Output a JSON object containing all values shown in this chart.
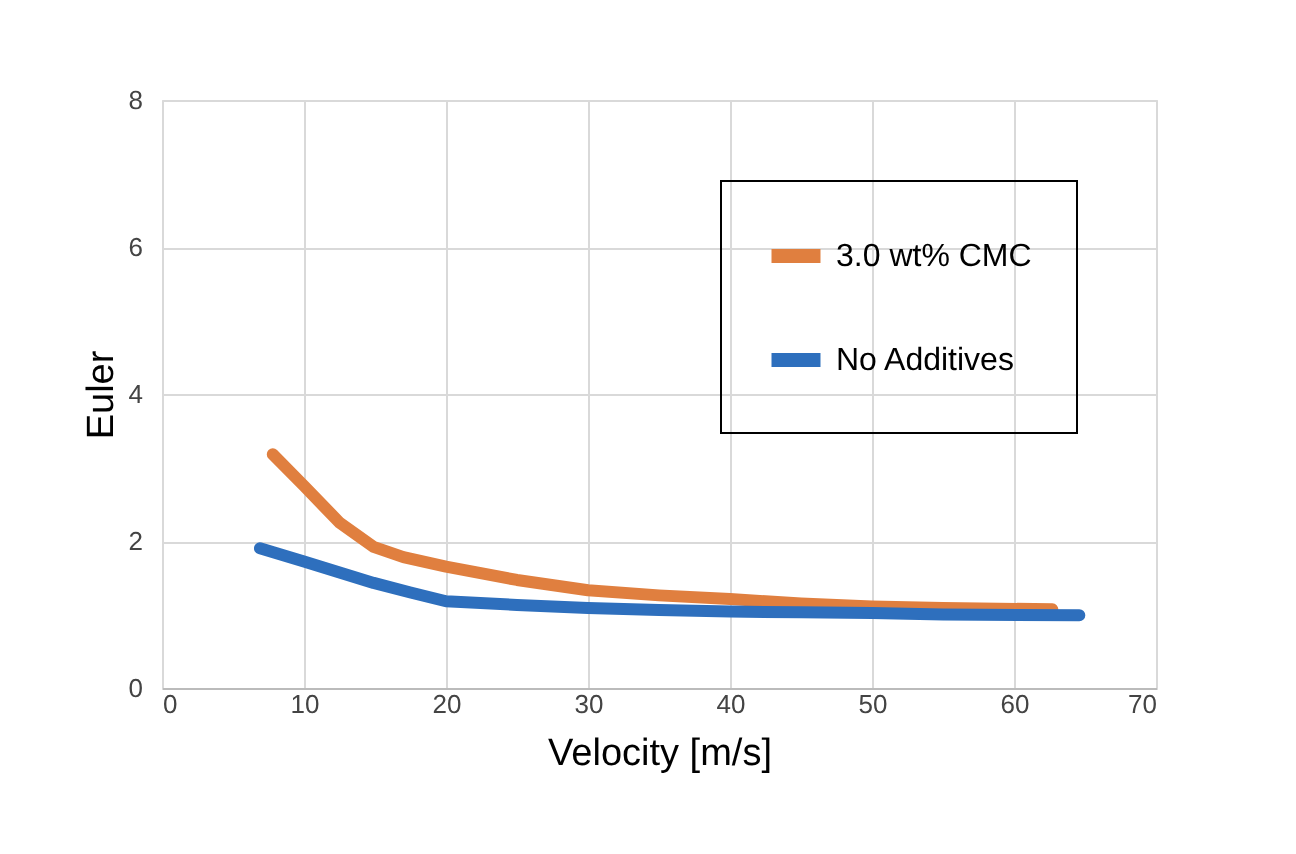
{
  "chart_data": {
    "type": "line",
    "xlabel": "Velocity [m/s]",
    "ylabel": "Euler",
    "xlim": [
      0,
      70
    ],
    "xticks": [
      0,
      10,
      20,
      30,
      40,
      50,
      60,
      70
    ],
    "ylim": [
      0,
      8
    ],
    "yticks": [
      0,
      2,
      4,
      6,
      8
    ],
    "grid": true,
    "legend": "top right",
    "line_style": "solid",
    "marker": "none",
    "series": [
      {
        "name": "3.0 wt% CMC",
        "color": "#e07f3f",
        "x": [
          7.8,
          10,
          12.5,
          14.9,
          17,
          20,
          25,
          30,
          35,
          40,
          45,
          50,
          55,
          62.7
        ],
        "values": [
          3.18,
          2.75,
          2.25,
          1.92,
          1.78,
          1.65,
          1.47,
          1.33,
          1.26,
          1.21,
          1.15,
          1.11,
          1.09,
          1.07
        ]
      },
      {
        "name": "No Additives",
        "color": "#2e6fbd",
        "x": [
          6.9,
          10,
          14.9,
          17.5,
          20,
          25,
          30,
          35,
          40,
          45,
          50,
          55,
          64.6
        ],
        "values": [
          1.9,
          1.72,
          1.43,
          1.3,
          1.18,
          1.13,
          1.09,
          1.06,
          1.04,
          1.03,
          1.02,
          1.0,
          0.99
        ]
      }
    ]
  }
}
